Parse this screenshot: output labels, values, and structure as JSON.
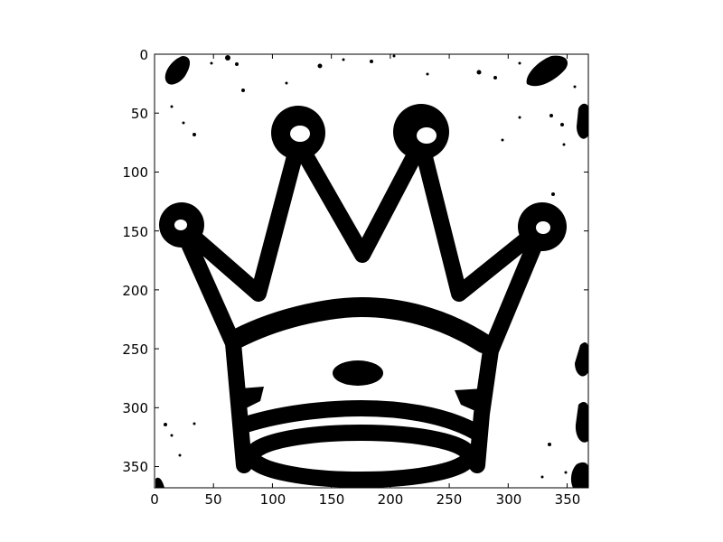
{
  "figure": {
    "background": "#ffffff",
    "image_subject": "crown",
    "x_ticks": [
      "0",
      "50",
      "100",
      "150",
      "200",
      "250",
      "300",
      "350"
    ],
    "y_ticks": [
      "0",
      "50",
      "100",
      "150",
      "200",
      "250",
      "300",
      "350"
    ],
    "xlim": [
      0,
      368
    ],
    "ylim": [
      368,
      0
    ]
  },
  "colors": {
    "ink": "#000000",
    "paper": "#ffffff"
  }
}
